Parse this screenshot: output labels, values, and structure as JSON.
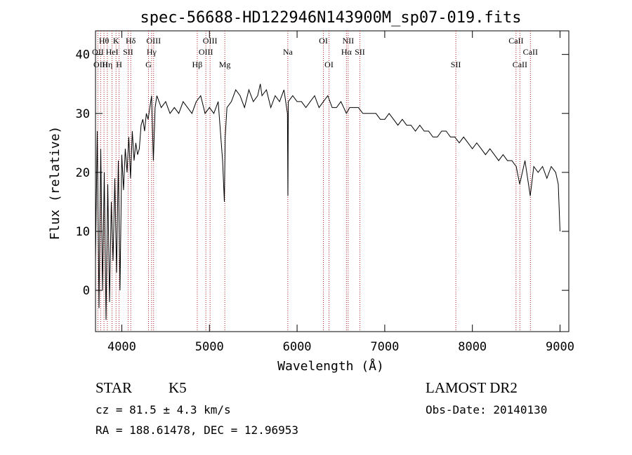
{
  "chart_data": {
    "type": "line",
    "title": "spec-56688-HD122946N143900M_sp07-019.fits",
    "xlabel": "Wavelength (Å)",
    "ylabel": "Flux (relative)",
    "xlim": [
      3700,
      9100
    ],
    "ylim": [
      -7,
      44
    ],
    "xticks": [
      4000,
      5000,
      6000,
      7000,
      8000,
      9000
    ],
    "yticks": [
      0,
      10,
      20,
      30,
      40
    ],
    "grid": false,
    "series": [
      {
        "x": [
          3700,
          3720,
          3740,
          3760,
          3780,
          3800,
          3820,
          3840,
          3860,
          3880,
          3900,
          3920,
          3940,
          3960,
          3980,
          4000,
          4020,
          4040,
          4060,
          4080,
          4100,
          4120,
          4140,
          4160,
          4180,
          4200,
          4220,
          4240,
          4260,
          4280,
          4300,
          4320,
          4340,
          4360,
          4380,
          4400,
          4450,
          4500,
          4550,
          4600,
          4650,
          4700,
          4750,
          4800,
          4850,
          4900,
          4950,
          5000,
          5050,
          5100,
          5150,
          5170,
          5180,
          5200,
          5250,
          5300,
          5350,
          5400,
          5450,
          5500,
          5550,
          5580,
          5600,
          5650,
          5700,
          5750,
          5800,
          5850,
          5890,
          5895,
          5900,
          5950,
          6000,
          6050,
          6100,
          6150,
          6200,
          6250,
          6300,
          6350,
          6400,
          6450,
          6500,
          6563,
          6600,
          6650,
          6700,
          6750,
          6800,
          6850,
          6900,
          6950,
          7000,
          7050,
          7100,
          7150,
          7200,
          7250,
          7300,
          7350,
          7400,
          7450,
          7500,
          7550,
          7600,
          7650,
          7700,
          7750,
          7800,
          7850,
          7900,
          7950,
          8000,
          8050,
          8100,
          8150,
          8200,
          8250,
          8300,
          8350,
          8400,
          8450,
          8500,
          8540,
          8600,
          8660,
          8700,
          8750,
          8800,
          8850,
          8900,
          8950,
          8980,
          9000
        ],
        "values": [
          5,
          27,
          -3,
          24,
          0,
          20,
          -5,
          18,
          -2,
          15,
          5,
          19,
          3,
          22,
          0,
          23,
          17,
          24,
          20,
          26,
          19,
          27,
          22,
          25,
          23,
          24,
          28,
          29,
          27,
          30,
          29,
          31,
          33,
          22,
          31,
          33,
          31,
          32,
          30,
          31,
          30,
          32,
          31,
          30,
          32,
          33,
          30,
          31,
          30,
          32,
          22,
          15,
          26,
          31,
          32,
          34,
          33,
          31,
          34,
          32,
          33,
          35,
          33,
          34,
          31,
          33,
          32,
          34,
          30,
          16,
          32,
          33,
          32,
          32,
          31,
          32,
          33,
          31,
          32,
          33,
          31,
          31,
          32,
          30,
          31,
          31,
          31,
          30,
          30,
          30,
          30,
          29,
          29,
          30,
          29,
          28,
          29,
          28,
          28,
          27,
          28,
          27,
          27,
          26,
          26,
          27,
          27,
          26,
          26,
          25,
          26,
          25,
          24,
          25,
          24,
          23,
          24,
          23,
          22,
          23,
          22,
          22,
          21,
          18,
          22,
          16,
          21,
          20,
          21,
          19,
          21,
          20,
          18,
          10
        ]
      }
    ],
    "line_markers": [
      {
        "label": "Hθ",
        "x": 3797,
        "row": 1
      },
      {
        "label": "OII",
        "x": 3727,
        "row": 2
      },
      {
        "label": "OIII",
        "x": 3759,
        "row": 3
      },
      {
        "label": "Hη",
        "x": 3835,
        "row": 3
      },
      {
        "label": "K",
        "x": 3934,
        "row": 1
      },
      {
        "label": "HeI",
        "x": 3889,
        "row": 2
      },
      {
        "label": "SII",
        "x": 4072,
        "row": 2
      },
      {
        "label": "H",
        "x": 3969,
        "row": 3
      },
      {
        "label": "Hδ",
        "x": 4102,
        "row": 1
      },
      {
        "label": "OIII",
        "x": 4363,
        "row": 1
      },
      {
        "label": "Hγ",
        "x": 4340,
        "row": 2
      },
      {
        "label": "G",
        "x": 4305,
        "row": 3
      },
      {
        "label": "OIII",
        "x": 5007,
        "row": 1
      },
      {
        "label": "OIII",
        "x": 4959,
        "row": 2
      },
      {
        "label": "Hβ",
        "x": 4861,
        "row": 3
      },
      {
        "label": "Mg",
        "x": 5175,
        "row": 3
      },
      {
        "label": "Na",
        "x": 5894,
        "row": 2
      },
      {
        "label": "OI",
        "x": 6300,
        "row": 1
      },
      {
        "label": "OI",
        "x": 6364,
        "row": 3
      },
      {
        "label": "NII",
        "x": 6583,
        "row": 1
      },
      {
        "label": "Hα",
        "x": 6563,
        "row": 2
      },
      {
        "label": "SII",
        "x": 6716,
        "row": 2
      },
      {
        "label": "SII",
        "x": 7811,
        "row": 3
      },
      {
        "label": "CaII",
        "x": 8498,
        "row": 1
      },
      {
        "label": "CaII",
        "x": 8662,
        "row": 2
      },
      {
        "label": "CaII",
        "x": 8542,
        "row": 3
      }
    ]
  },
  "info": {
    "class_label": "STAR",
    "subclass_label": "K5",
    "survey_label": "LAMOST DR2",
    "cz_text": "cz = 81.5 ± 4.3 km/s",
    "obs_date_text": "Obs-Date: 20140130",
    "coords_text": "RA = 188.61478, DEC =  12.96953"
  }
}
